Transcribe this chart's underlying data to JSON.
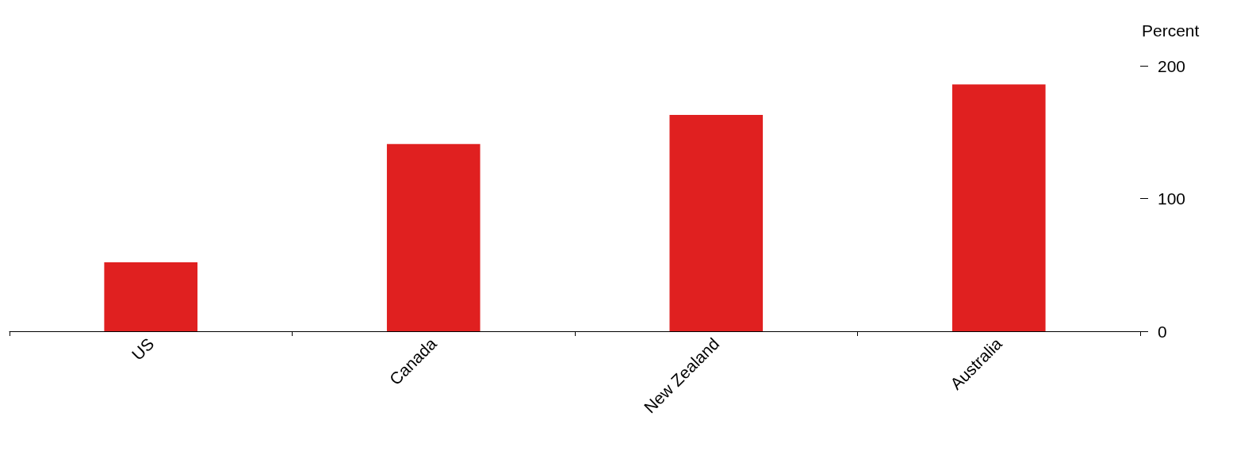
{
  "chart_data": {
    "type": "bar",
    "ylabel": "Percent",
    "categories": [
      "US",
      "Canada",
      "New Zealand",
      "Australia"
    ],
    "values": [
      52,
      141,
      163,
      186
    ],
    "color": "#e02020",
    "ylim": [
      0,
      200
    ],
    "yticks": [
      0,
      100,
      200
    ]
  }
}
